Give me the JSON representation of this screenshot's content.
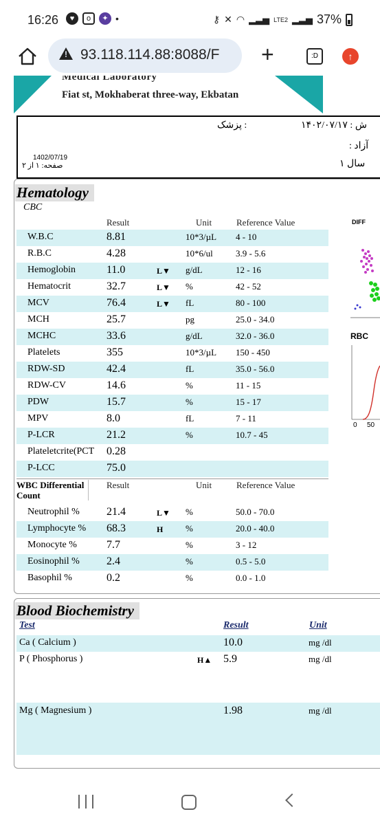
{
  "status_bar": {
    "time": "16:26",
    "battery": "37%",
    "network_label": "LTE2",
    "left_icons": [
      "shield-icon",
      "instagram-icon",
      "messenger-icon"
    ],
    "right_icons": [
      "key-icon",
      "mute-icon",
      "wifi-icon",
      "signal-icon"
    ]
  },
  "browser": {
    "url": "93.118.114.88:8088/F",
    "tab_count_label": ":D",
    "update_icon": "arrow-up-icon"
  },
  "lab": {
    "name": "Medical Laboratory",
    "address": "Fiat st, Mokhaberat three-way, Ekbatan"
  },
  "patient": {
    "doctor_label": "پزشک :",
    "date_fa": "۱۴۰۲/۰۷/۱۷ : ش",
    "insurance": ": آزاد",
    "age": "۱ سال",
    "date": "1402/07/19",
    "page": "صفحه: ۱ از ۲"
  },
  "hematology": {
    "title": "Hematology",
    "subtitle": "CBC",
    "headers": {
      "result": "Result",
      "unit": "Unit",
      "reference": "Reference Value"
    },
    "rows": [
      {
        "name": "W.B.C",
        "result": "8.81",
        "flag": "",
        "unit": "10*3/µL",
        "ref": "4 - 10",
        "shaded": true
      },
      {
        "name": "R.B.C",
        "result": "4.28",
        "flag": "",
        "unit": "10*6/ul",
        "ref": "3.9 - 5.6",
        "shaded": false
      },
      {
        "name": "Hemoglobin",
        "result": "11.0",
        "flag": "L▼",
        "unit": "g/dL",
        "ref": "12 - 16",
        "shaded": true
      },
      {
        "name": "Hematocrit",
        "result": "32.7",
        "flag": "L▼",
        "unit": "%",
        "ref": "42 - 52",
        "shaded": false
      },
      {
        "name": "MCV",
        "result": "76.4",
        "flag": "L▼",
        "unit": "fL",
        "ref": "80 - 100",
        "shaded": true
      },
      {
        "name": "MCH",
        "result": "25.7",
        "flag": "",
        "unit": "pg",
        "ref": "25.0 - 34.0",
        "shaded": false
      },
      {
        "name": "MCHC",
        "result": "33.6",
        "flag": "",
        "unit": "g/dL",
        "ref": "32.0 - 36.0",
        "shaded": true
      },
      {
        "name": "Platelets",
        "result": "355",
        "flag": "",
        "unit": "10*3/µL",
        "ref": "150 - 450",
        "shaded": false
      },
      {
        "name": "RDW-SD",
        "result": "42.4",
        "flag": "",
        "unit": "fL",
        "ref": "35.0 - 56.0",
        "shaded": true
      },
      {
        "name": "RDW-CV",
        "result": "14.6",
        "flag": "",
        "unit": "%",
        "ref": "11 - 15",
        "shaded": false
      },
      {
        "name": "PDW",
        "result": "15.7",
        "flag": "",
        "unit": "%",
        "ref": "15 - 17",
        "shaded": true
      },
      {
        "name": "MPV",
        "result": "8.0",
        "flag": "",
        "unit": "fL",
        "ref": "7 - 11",
        "shaded": false
      },
      {
        "name": "P-LCR",
        "result": "21.2",
        "flag": "",
        "unit": "%",
        "ref": "10.7 - 45",
        "shaded": true
      },
      {
        "name": "Plateletcrite(PCT",
        "result": "0.28",
        "flag": "",
        "unit": "",
        "ref": "",
        "shaded": false
      },
      {
        "name": "P-LCC",
        "result": "75.0",
        "flag": "",
        "unit": "",
        "ref": "",
        "shaded": true
      }
    ],
    "wbc_diff": {
      "title": "WBC Differential Count",
      "headers": {
        "result": "Result",
        "unit": "Unit",
        "reference": "Reference Value"
      },
      "rows": [
        {
          "name": "Neutrophil %",
          "result": "21.4",
          "flag": "L▼",
          "unit": "%",
          "ref": "50.0 - 70.0",
          "shaded": false
        },
        {
          "name": "Lymphocyte %",
          "result": "68.3",
          "flag": "H",
          "unit": "%",
          "ref": "20.0 - 40.0",
          "shaded": true
        },
        {
          "name": "Monocyte %",
          "result": "7.7",
          "flag": "",
          "unit": "%",
          "ref": "3 - 12",
          "shaded": false
        },
        {
          "name": "Eosinophil %",
          "result": "2.4",
          "flag": "",
          "unit": "%",
          "ref": "0.5 - 5.0",
          "shaded": true
        },
        {
          "name": "Basophil %",
          "result": "0.2",
          "flag": "",
          "unit": "%",
          "ref": "0.0 - 1.0",
          "shaded": false
        }
      ]
    },
    "side_charts": {
      "diff_label": "DIFF",
      "rbc_label": "RBC",
      "rbc_axis_0": "0",
      "rbc_axis_50": "50"
    }
  },
  "biochemistry": {
    "title": "Blood Biochemistry",
    "headers": {
      "test": "Test",
      "result": "Result",
      "unit": "Unit"
    },
    "rows": [
      {
        "name": "Ca ( Calcium )",
        "flag": "",
        "result": "10.0",
        "unit": "mg /dl",
        "shaded": true
      },
      {
        "name": "P ( Phosphorus )",
        "flag": "H▲",
        "result": "5.9",
        "unit": "mg /dl",
        "shaded": false
      },
      {
        "name": "Mg ( Magnesium )",
        "flag": "",
        "result": "1.98",
        "unit": "mg /dl",
        "shaded": true
      }
    ]
  }
}
